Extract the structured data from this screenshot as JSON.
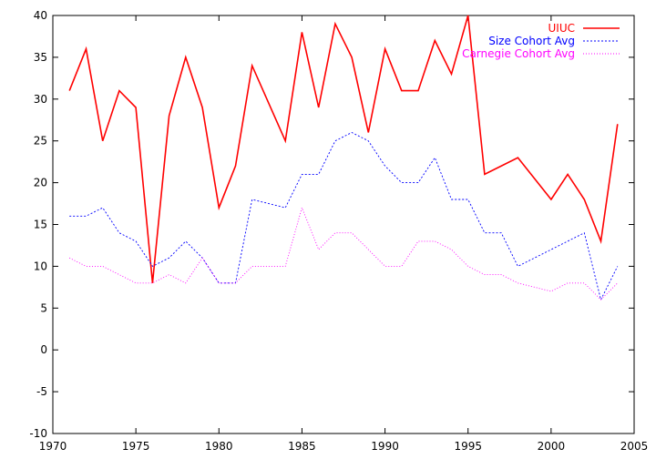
{
  "chart_data": {
    "type": "line",
    "title": "",
    "xlabel": "",
    "ylabel": "",
    "xlim": [
      1970,
      2005
    ],
    "ylim": [
      -10,
      40
    ],
    "xticks": [
      1970,
      1975,
      1980,
      1985,
      1990,
      1995,
      2000,
      2005
    ],
    "yticks": [
      -10,
      -5,
      0,
      5,
      10,
      15,
      20,
      25,
      30,
      35,
      40
    ],
    "grid": false,
    "legend_position": "top-right",
    "series": [
      {
        "name": "UIUC",
        "color": "#ff0000",
        "style": "solid",
        "x": [
          1971,
          1972,
          1973,
          1974,
          1975,
          1976,
          1977,
          1978,
          1979,
          1980,
          1981,
          1982,
          1984,
          1985,
          1986,
          1987,
          1988,
          1989,
          1990,
          1991,
          1992,
          1993,
          1994,
          1995,
          1996,
          1998,
          2000,
          2001,
          2002,
          2003,
          2004
        ],
        "values": [
          31,
          36,
          25,
          31,
          29,
          8,
          28,
          35,
          29,
          17,
          22,
          34,
          25,
          38,
          29,
          39,
          35,
          26,
          36,
          31,
          31,
          37,
          33,
          40,
          21,
          23,
          18,
          21,
          18,
          13,
          27
        ]
      },
      {
        "name": "Size Cohort Avg",
        "color": "#0000ff",
        "style": "dashed",
        "x": [
          1971,
          1972,
          1973,
          1974,
          1975,
          1976,
          1977,
          1978,
          1979,
          1980,
          1981,
          1982,
          1984,
          1985,
          1986,
          1987,
          1988,
          1989,
          1990,
          1991,
          1992,
          1993,
          1994,
          1995,
          1996,
          1997,
          1998,
          2002,
          2003,
          2004
        ],
        "values": [
          16,
          16,
          17,
          14,
          13,
          10,
          11,
          13,
          11,
          8,
          8,
          18,
          17,
          21,
          21,
          25,
          26,
          25,
          22,
          20,
          20,
          23,
          18,
          18,
          14,
          14,
          10,
          14,
          6,
          10
        ]
      },
      {
        "name": "Carnegie Cohort Avg",
        "color": "#ff00ff",
        "style": "dotted",
        "x": [
          1971,
          1972,
          1973,
          1974,
          1975,
          1976,
          1977,
          1978,
          1979,
          1980,
          1981,
          1982,
          1984,
          1985,
          1986,
          1987,
          1988,
          1989,
          1990,
          1991,
          1992,
          1993,
          1994,
          1995,
          1996,
          1997,
          1998,
          2000,
          2001,
          2002,
          2003,
          2004
        ],
        "values": [
          11,
          10,
          10,
          9,
          8,
          8,
          9,
          8,
          11,
          8,
          8,
          10,
          10,
          17,
          12,
          14,
          14,
          12,
          10,
          10,
          13,
          13,
          12,
          10,
          9,
          9,
          8,
          7,
          8,
          8,
          6,
          8
        ]
      }
    ]
  }
}
